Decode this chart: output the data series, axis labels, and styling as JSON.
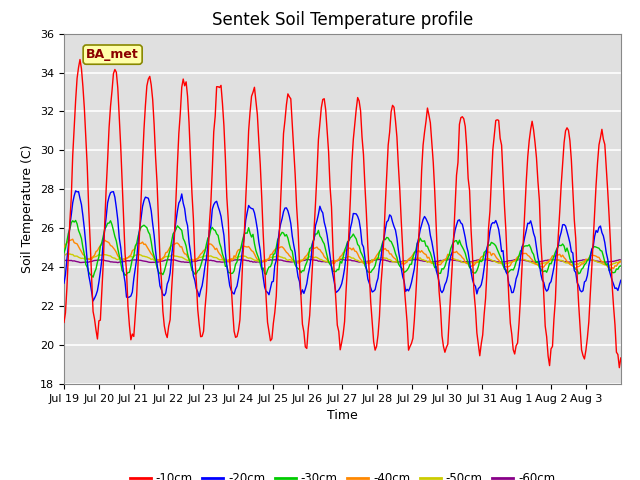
{
  "title": "Sentek Soil Temperature profile",
  "xlabel": "Time",
  "ylabel": "Soil Temperature (C)",
  "ylim": [
    18,
    36
  ],
  "yticks": [
    18,
    20,
    22,
    24,
    26,
    28,
    30,
    32,
    34,
    36
  ],
  "annotation": "BA_met",
  "bg_color": "#e0e0e0",
  "line_colors": {
    "-10cm": "#ff0000",
    "-20cm": "#0000ff",
    "-30cm": "#00cc00",
    "-40cm": "#ff8800",
    "-50cm": "#cccc00",
    "-60cm": "#880088"
  },
  "legend_labels": [
    "-10cm",
    "-20cm",
    "-30cm",
    "-40cm",
    "-50cm",
    "-60cm"
  ],
  "days": [
    "Jul 19",
    "Jul 20",
    "Jul 21",
    "Jul 22",
    "Jul 23",
    "Jul 24",
    "Jul 25",
    "Jul 26",
    "Jul 27",
    "Jul 28",
    "Jul 29",
    "Jul 30",
    "Jul 31",
    "Aug 1",
    "Aug 2",
    "Aug 3"
  ]
}
